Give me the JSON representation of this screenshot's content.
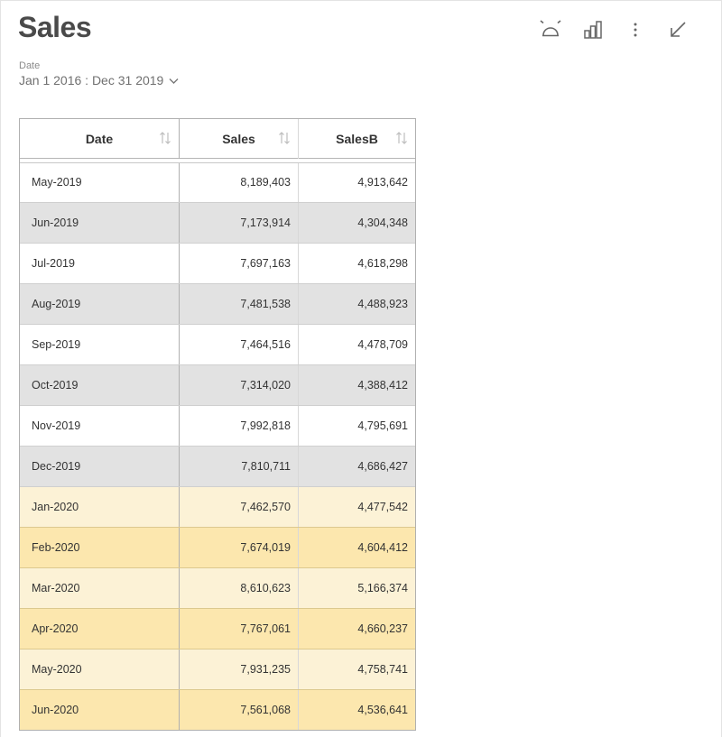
{
  "header": {
    "title": "Sales",
    "tools": [
      "alarm-icon",
      "bar-chart-icon",
      "more-vertical-icon",
      "minimize-icon"
    ]
  },
  "filter": {
    "label": "Date",
    "value": "Jan 1 2016 : Dec 31 2019"
  },
  "table": {
    "columns": [
      "Date",
      "Sales",
      "SalesB"
    ],
    "rows": [
      {
        "date": "May-2019",
        "sales": "8,189,403",
        "salesb": "4,913,642"
      },
      {
        "date": "Jun-2019",
        "sales": "7,173,914",
        "salesb": "4,304,348"
      },
      {
        "date": "Jul-2019",
        "sales": "7,697,163",
        "salesb": "4,618,298"
      },
      {
        "date": "Aug-2019",
        "sales": "7,481,538",
        "salesb": "4,488,923"
      },
      {
        "date": "Sep-2019",
        "sales": "7,464,516",
        "salesb": "4,478,709"
      },
      {
        "date": "Oct-2019",
        "sales": "7,314,020",
        "salesb": "4,388,412"
      },
      {
        "date": "Nov-2019",
        "sales": "7,992,818",
        "salesb": "4,795,691"
      },
      {
        "date": "Dec-2019",
        "sales": "7,810,711",
        "salesb": "4,686,427"
      },
      {
        "date": "Jan-2020",
        "sales": "7,462,570",
        "salesb": "4,477,542"
      },
      {
        "date": "Feb-2020",
        "sales": "7,674,019",
        "salesb": "4,604,412"
      },
      {
        "date": "Mar-2020",
        "sales": "8,610,623",
        "salesb": "5,166,374"
      },
      {
        "date": "Apr-2020",
        "sales": "7,767,061",
        "salesb": "4,660,237"
      },
      {
        "date": "May-2020",
        "sales": "7,931,235",
        "salesb": "4,758,741"
      },
      {
        "date": "Jun-2020",
        "sales": "7,561,068",
        "salesb": "4,536,641"
      }
    ]
  },
  "colors": {
    "row_white": "#ffffff",
    "row_grey": "#e2e2e2",
    "row_yellow_light": "#fcf2d6",
    "row_yellow_dark": "#fce7ae"
  }
}
